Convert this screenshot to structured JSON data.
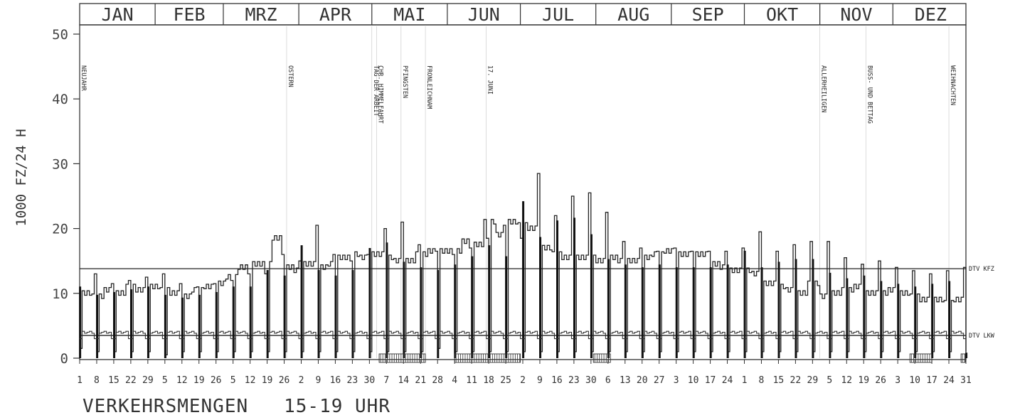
{
  "chart_data": {
    "type": "line",
    "caption": "VERKEHRSMENGEN   15-19 UHR",
    "ylabel": "1000 FZ/24 H",
    "ylim": [
      0,
      52
    ],
    "yticks": [
      0,
      10,
      20,
      30,
      40,
      50
    ],
    "x_domain_days": [
      1,
      365
    ],
    "months": [
      "JAN",
      "FEB",
      "MRZ",
      "APR",
      "MAI",
      "JUN",
      "JUL",
      "AUG",
      "SEP",
      "OKT",
      "NOV",
      "DEZ"
    ],
    "x_tick_labels": [
      "1",
      "8",
      "15",
      "22",
      "29",
      "5",
      "12",
      "19",
      "26",
      "5",
      "12",
      "19",
      "26",
      "2",
      "9",
      "16",
      "23",
      "30",
      "7",
      "14",
      "21",
      "28",
      "4",
      "11",
      "18",
      "25",
      "2",
      "9",
      "16",
      "23",
      "30",
      "6",
      "13",
      "20",
      "27",
      "3",
      "10",
      "17",
      "24",
      "1",
      "8",
      "15",
      "22",
      "29",
      "5",
      "12",
      "19",
      "26",
      "3",
      "10",
      "17",
      "24",
      "31"
    ],
    "holidays": [
      {
        "day": 1,
        "label": "NEUJAHR"
      },
      {
        "day": 86,
        "label": "OSTERN"
      },
      {
        "day": 121,
        "label": "TAG DER ARBEIT"
      },
      {
        "day": 123,
        "label": "CHR. HIMMELFAHRT"
      },
      {
        "day": 133,
        "label": "PFINGSTEN"
      },
      {
        "day": 143,
        "label": "FRONLEICHNAM"
      },
      {
        "day": 168,
        "label": "17. JUNI"
      },
      {
        "day": 305,
        "label": "ALLERHEILIGEN"
      },
      {
        "day": 324,
        "label": "BUSS- UND BETTAG"
      },
      {
        "day": 358,
        "label": "WEIHNACHTEN"
      }
    ],
    "vacation_periods": [
      [
        124,
        143
      ],
      [
        155,
        182
      ],
      [
        212,
        219
      ],
      [
        342,
        351
      ],
      [
        363,
        365
      ]
    ],
    "reference_lines": [
      {
        "name": "DTV KFZ",
        "value": 13.8
      },
      {
        "name": "DTV LKW",
        "value": 3.5
      }
    ],
    "series": [
      {
        "name": "KFZ",
        "weekly": {
          "weekday_means": [
            10.0,
            9.5,
            10.5,
            10.0,
            11.0,
            10.5,
            11.0,
            10.5,
            10.0,
            9.5,
            10.5,
            11.0,
            11.5,
            12.5,
            14.0,
            14.5,
            14.5,
            18.5,
            14.0,
            13.5,
            14.5,
            14.0,
            14.5,
            15.5,
            16.0,
            15.5,
            16.0,
            15.5,
            15.0,
            15.0,
            16.0,
            16.5,
            16.5,
            16.5,
            18.0,
            17.5,
            21.0,
            19.0,
            21.0,
            20.5,
            20.0,
            17.0,
            16.0,
            15.5,
            15.5,
            15.5,
            15.0,
            15.5,
            15.0,
            15.0,
            15.5,
            16.0,
            16.5,
            16.0,
            16.0,
            16.0,
            14.5,
            14.0,
            13.5,
            13.5,
            13.0,
            11.5,
            11.0,
            10.5,
            10.0,
            11.5,
            9.5,
            10.0,
            10.5,
            11.0,
            10.0,
            10.0,
            10.5,
            10.0,
            9.5,
            9.0,
            9.0,
            8.5,
            9.0,
            8.0
          ],
          "weekend_peaks": [
            13.0,
            11.5,
            12.0,
            12.5,
            13.0,
            11.5,
            11.0,
            11.5,
            12.0,
            13.0,
            13.0,
            16.0,
            15.0,
            20.5,
            16.0,
            15.0,
            16.0,
            20.0,
            21.0,
            17.5,
            16.5,
            16.0,
            17.0,
            18.5,
            20.5,
            18.5,
            28.5,
            22.0,
            25.0,
            25.5,
            22.5,
            18.0,
            17.0,
            16.5,
            17.0,
            16.5,
            16.5,
            16.5,
            17.0,
            19.5,
            16.5,
            17.5,
            18.0,
            18.0,
            15.5,
            14.5,
            15.0,
            14.0,
            13.5,
            13.0,
            13.5,
            14.0,
            15.0,
            12.0,
            11.0,
            12.0,
            11.0,
            10.0,
            11.0
          ],
          "weekly_minima": [
            1.5,
            1.0,
            1.0,
            1.0,
            1.0,
            0.5,
            1.0,
            1.0,
            1.0,
            1.0,
            1.0,
            1.0,
            1.0,
            1.0,
            1.0,
            1.0,
            1.0,
            1.0,
            1.0,
            1.0,
            1.0,
            1.5,
            1.0,
            1.0,
            1.0,
            1.0,
            1.0,
            1.0,
            1.0,
            1.0,
            1.0,
            1.0,
            1.0,
            1.0,
            1.0,
            1.0,
            1.0,
            1.0,
            1.0,
            1.0,
            1.0,
            1.0,
            1.0,
            1.0,
            1.0,
            1.0,
            1.0,
            1.0,
            1.0,
            1.0,
            1.0,
            1.0,
            1.0
          ]
        }
      },
      {
        "name": "LKW",
        "weekday_value": 4.0,
        "weekend_value": 3.0
      }
    ],
    "grid": false,
    "legend": "none"
  }
}
